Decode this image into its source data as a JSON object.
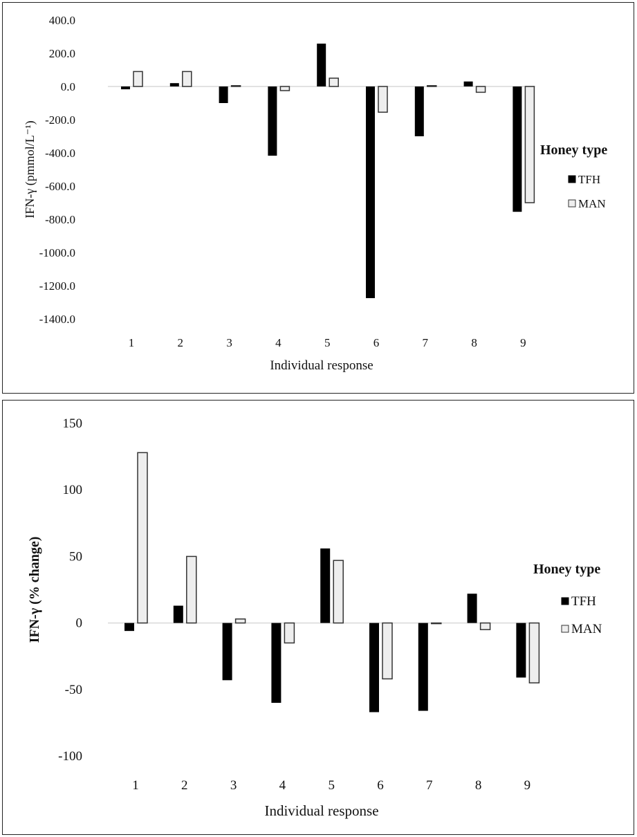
{
  "colors": {
    "tfh": "#000000",
    "man": "#eeeeee",
    "man_stroke": "#333333",
    "axis": "#d9d9d9"
  },
  "chart_data": [
    {
      "type": "bar",
      "ylabel": "IFN-γ (pmmol/L⁻¹)",
      "xlabel": "Individual response",
      "ylim": [
        -1400,
        400
      ],
      "yticks": [
        "400.0",
        "200.0",
        "0.0",
        "-200.0",
        "-400.0",
        "-600.0",
        "-800.0",
        "-1000.0",
        "-1200.0",
        "-1400.0"
      ],
      "categories": [
        "1",
        "2",
        "3",
        "4",
        "5",
        "6",
        "7",
        "8",
        "9"
      ],
      "legend_title": "Honey type",
      "legend_position": "right",
      "series": [
        {
          "name": "TFH",
          "values": [
            -17,
            20,
            -100,
            -417,
            258,
            -1275,
            -300,
            30,
            -755
          ]
        },
        {
          "name": "MAN",
          "values": [
            90,
            90,
            5,
            -25,
            50,
            -155,
            5,
            -35,
            -700
          ]
        }
      ],
      "grid": false
    },
    {
      "type": "bar",
      "ylabel": "IFN-γ (% change)",
      "xlabel": "Individual response",
      "ylim": [
        -100,
        150
      ],
      "yticks": [
        "150",
        "100",
        "50",
        "0",
        "-50",
        "-100"
      ],
      "categories": [
        "1",
        "2",
        "3",
        "4",
        "5",
        "6",
        "7",
        "8",
        "9"
      ],
      "legend_title": "Honey type",
      "legend_position": "right",
      "series": [
        {
          "name": "TFH",
          "values": [
            -6,
            13,
            -43,
            -60,
            56,
            -67,
            -66,
            22,
            -41
          ]
        },
        {
          "name": "MAN",
          "values": [
            128,
            50,
            3,
            -15,
            47,
            -42,
            0,
            -5,
            -45
          ]
        }
      ],
      "grid": false
    }
  ]
}
